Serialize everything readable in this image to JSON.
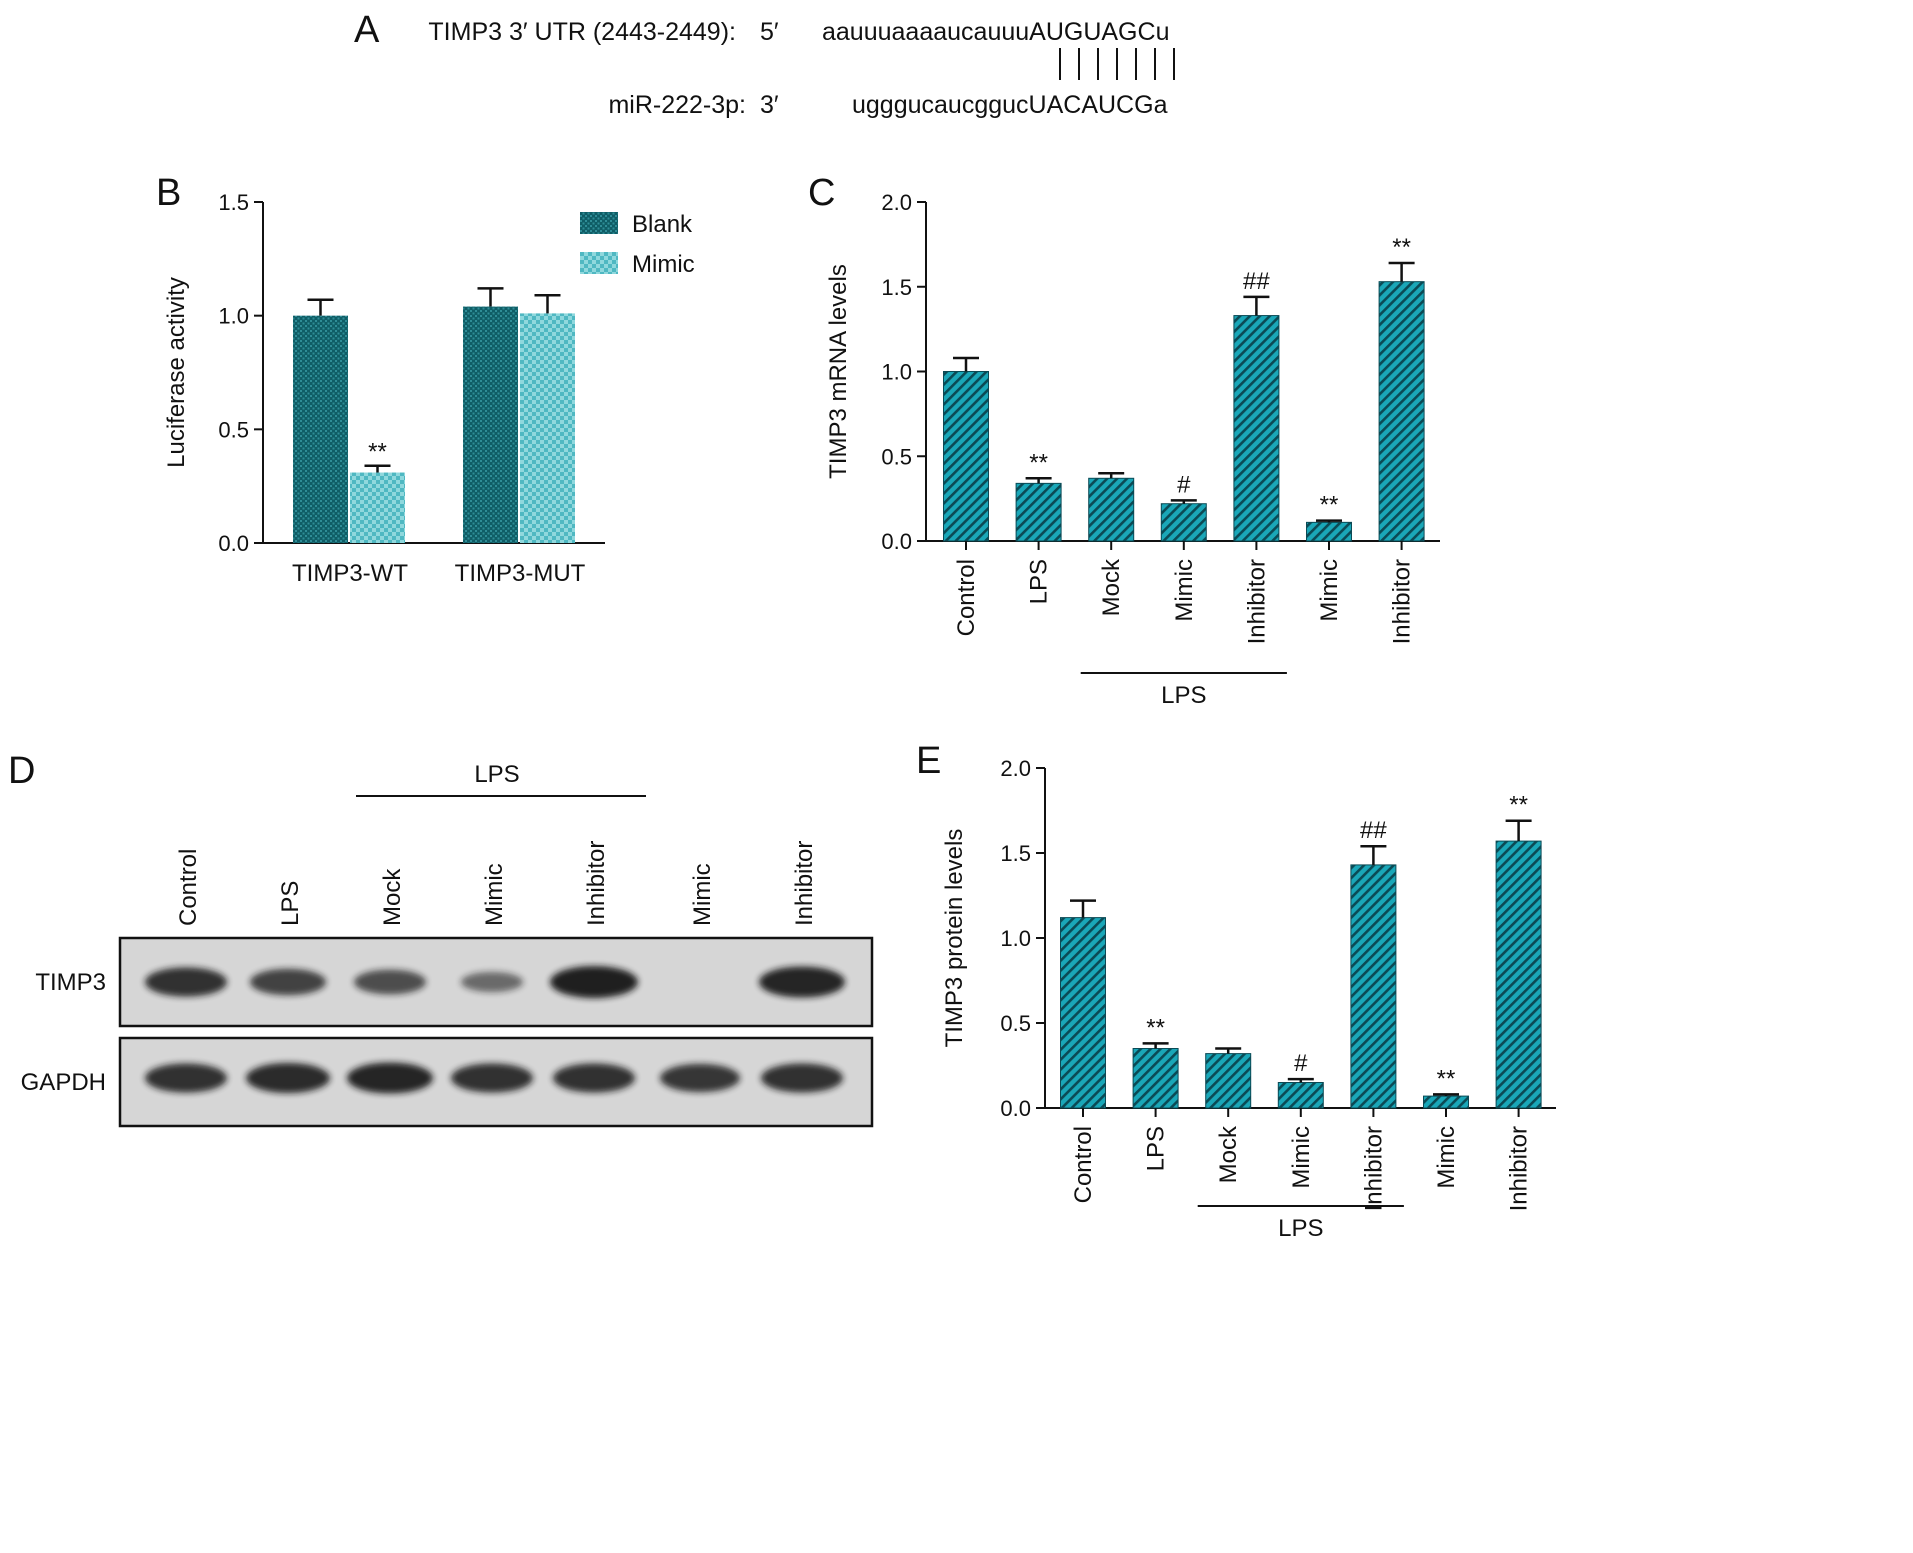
{
  "colors": {
    "teal_dark": "#0f5d66",
    "teal_bright": "#2ab3c2",
    "teal_light": "#7fd0d6",
    "axis": "#111111",
    "blot_background": "#d6d6d6",
    "band": "#151515"
  },
  "panel_a": {
    "letter": "A",
    "utr_label": "TIMP3 3′ UTR (2443-2449):",
    "utr_end": "5′",
    "utr_seq_lower": "aauuuaaaaucauuu",
    "utr_seq_upper": "AUGUAGC",
    "utr_seq_tail": "u",
    "mir_label": "miR-222-3p:",
    "mir_end": "3′",
    "mir_seq_lower": "ugggucaucgguc",
    "mir_seq_upper": "UACAUCG",
    "mir_seq_tail": "a"
  },
  "panel_d": {
    "letter": "D",
    "group_label": "LPS",
    "lanes": [
      "Control",
      "LPS",
      "Mock",
      "Mimic",
      "Inhibitor",
      "Mimic",
      "Inhibitor"
    ],
    "rows": [
      "TIMP3",
      "GAPDH"
    ],
    "band_intensity": {
      "TIMP3": [
        0.85,
        0.7,
        0.6,
        0.35,
        1.0,
        0.0,
        0.95
      ],
      "GAPDH": [
        0.85,
        0.9,
        0.95,
        0.85,
        0.85,
        0.8,
        0.85
      ]
    }
  },
  "chart_data": [
    {
      "panel": "B",
      "type": "bar",
      "categories": [
        "TIMP3-WT",
        "TIMP3-MUT"
      ],
      "series": [
        {
          "name": "Blank",
          "values": [
            1.0,
            1.04
          ],
          "errors": [
            0.07,
            0.08
          ],
          "color": "#0f5d66"
        },
        {
          "name": "Mimic",
          "values": [
            0.31,
            1.01
          ],
          "errors": [
            0.03,
            0.08
          ],
          "color": "#7fd0d6"
        }
      ],
      "significance": [
        [
          "",
          ""
        ],
        [
          "**",
          ""
        ]
      ],
      "ylabel": "Luciferase activity",
      "ylim": [
        0,
        1.5
      ],
      "yticks": [
        "0.0",
        "0.5",
        "1.0",
        "1.5"
      ],
      "legend_position": "top-right",
      "grid": false
    },
    {
      "panel": "C",
      "type": "bar",
      "categories": [
        "Control",
        "LPS",
        "Mock",
        "Mimic",
        "Inhibitor",
        "Mimic",
        "Inhibitor"
      ],
      "values": [
        1.0,
        0.34,
        0.37,
        0.22,
        1.33,
        0.11,
        1.53
      ],
      "errors": [
        0.08,
        0.03,
        0.03,
        0.02,
        0.11,
        0.01,
        0.11
      ],
      "significance": [
        "",
        "**",
        "",
        "#",
        "##",
        "**",
        "**"
      ],
      "group_label": "LPS",
      "ylabel": "TIMP3 mRNA levels",
      "ylim": [
        0,
        2.0
      ],
      "yticks": [
        "0.0",
        "0.5",
        "1.0",
        "1.5",
        "2.0"
      ],
      "grid": false
    },
    {
      "panel": "E",
      "type": "bar",
      "categories": [
        "Control",
        "LPS",
        "Mock",
        "Mimic",
        "Inhibitor",
        "Mimic",
        "Inhibitor"
      ],
      "values": [
        1.12,
        0.35,
        0.32,
        0.15,
        1.43,
        0.07,
        1.57
      ],
      "errors": [
        0.1,
        0.03,
        0.03,
        0.02,
        0.11,
        0.01,
        0.12
      ],
      "significance": [
        "",
        "**",
        "",
        "#",
        "##",
        "**",
        "**"
      ],
      "group_label": "LPS",
      "ylabel": "TIMP3 protein levels",
      "ylim": [
        0,
        2.0
      ],
      "yticks": [
        "0.0",
        "0.5",
        "1.0",
        "1.5",
        "2.0"
      ],
      "grid": false
    }
  ]
}
